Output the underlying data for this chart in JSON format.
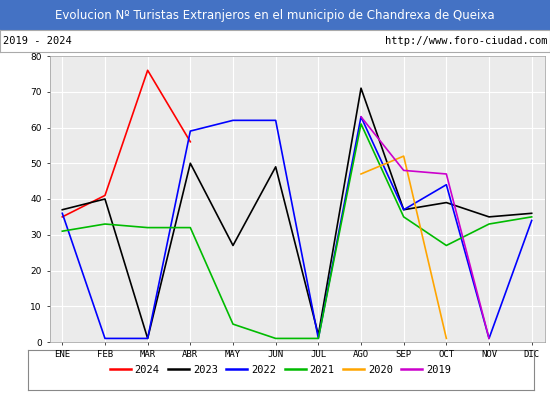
{
  "title": "Evolucion Nº Turistas Extranjeros en el municipio de Chandrexa de Queixa",
  "subtitle_left": "2019 - 2024",
  "subtitle_right": "http://www.foro-ciudad.com",
  "title_bg_color": "#4472c4",
  "title_text_color": "#ffffff",
  "plot_bg_color": "#ebebeb",
  "months": [
    "ENE",
    "FEB",
    "MAR",
    "ABR",
    "MAY",
    "JUN",
    "JUL",
    "AGO",
    "SEP",
    "OCT",
    "NOV",
    "DIC"
  ],
  "ylim": [
    0,
    80
  ],
  "yticks": [
    0,
    10,
    20,
    30,
    40,
    50,
    60,
    70,
    80
  ],
  "series": {
    "2024": {
      "color": "#ff0000",
      "values": [
        35,
        41,
        76,
        56,
        null,
        null,
        null,
        null,
        null,
        null,
        null,
        null
      ]
    },
    "2023": {
      "color": "#000000",
      "values": [
        37,
        40,
        1,
        50,
        27,
        49,
        2,
        71,
        37,
        39,
        35,
        36
      ]
    },
    "2022": {
      "color": "#0000ff",
      "values": [
        36,
        1,
        1,
        59,
        62,
        62,
        1,
        63,
        37,
        44,
        1,
        34
      ]
    },
    "2021": {
      "color": "#00bb00",
      "values": [
        31,
        33,
        32,
        32,
        5,
        1,
        1,
        61,
        35,
        27,
        33,
        35
      ]
    },
    "2020": {
      "color": "#ffa500",
      "values": [
        null,
        null,
        null,
        null,
        null,
        null,
        null,
        47,
        52,
        1,
        null,
        null
      ]
    },
    "2019": {
      "color": "#cc00cc",
      "values": [
        null,
        null,
        null,
        null,
        null,
        null,
        null,
        63,
        48,
        47,
        1,
        null
      ]
    }
  },
  "legend_order": [
    "2024",
    "2023",
    "2022",
    "2021",
    "2020",
    "2019"
  ]
}
